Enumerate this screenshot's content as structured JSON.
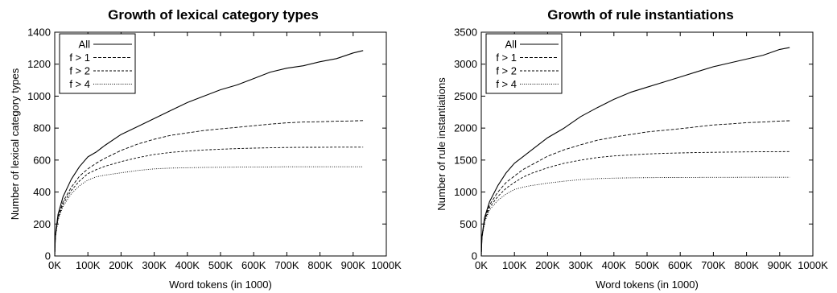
{
  "chart_data": [
    {
      "type": "line",
      "title": "Growth of lexical category types",
      "xlabel": "Word tokens (in 1000)",
      "ylabel": "Number of lexical category types",
      "xlim": [
        0,
        1000
      ],
      "ylim": [
        0,
        1400
      ],
      "x_ticks": [
        0,
        100,
        200,
        300,
        400,
        500,
        600,
        700,
        800,
        900,
        1000
      ],
      "x_tick_labels": [
        "0K",
        "100K",
        "200K",
        "300K",
        "400K",
        "500K",
        "600K",
        "700K",
        "800K",
        "900K",
        "1000K"
      ],
      "y_ticks": [
        0,
        200,
        400,
        600,
        800,
        1000,
        1200,
        1400
      ],
      "y_tick_labels": [
        "0",
        "200",
        "400",
        "600",
        "800",
        "1000",
        "1200",
        "1400"
      ],
      "legend_position": "top-left",
      "grid": false,
      "x": [
        0,
        2,
        10,
        25,
        50,
        75,
        100,
        125,
        150,
        200,
        250,
        300,
        350,
        400,
        450,
        500,
        550,
        600,
        650,
        700,
        750,
        800,
        850,
        900,
        930
      ],
      "series": [
        {
          "name": "All",
          "style": "solid",
          "values": [
            0,
            130,
            260,
            370,
            480,
            560,
            620,
            650,
            690,
            760,
            810,
            860,
            910,
            960,
            1000,
            1040,
            1070,
            1110,
            1150,
            1175,
            1190,
            1215,
            1235,
            1270,
            1285
          ]
        },
        {
          "name": "f > 1",
          "style": "dash",
          "values": [
            0,
            125,
            245,
            340,
            430,
            500,
            545,
            580,
            610,
            660,
            700,
            730,
            755,
            770,
            785,
            795,
            805,
            815,
            825,
            833,
            838,
            840,
            843,
            845,
            847
          ]
        },
        {
          "name": "f > 2",
          "style": "dash-fine",
          "values": [
            0,
            120,
            235,
            325,
            410,
            470,
            515,
            540,
            560,
            590,
            615,
            635,
            648,
            656,
            663,
            668,
            672,
            675,
            677,
            679,
            680,
            680,
            681,
            681,
            681
          ]
        },
        {
          "name": "f > 4",
          "style": "dot",
          "values": [
            0,
            115,
            225,
            310,
            390,
            440,
            475,
            495,
            505,
            520,
            535,
            545,
            550,
            552,
            554,
            555,
            556,
            557,
            557,
            558,
            558,
            558,
            558,
            558,
            558
          ]
        }
      ]
    },
    {
      "type": "line",
      "title": "Growth of rule instantiations",
      "xlabel": "Word tokens (in 1000)",
      "ylabel": "Number of rule instantiations",
      "xlim": [
        0,
        1000
      ],
      "ylim": [
        0,
        3500
      ],
      "x_ticks": [
        0,
        100,
        200,
        300,
        400,
        500,
        600,
        700,
        800,
        900,
        1000
      ],
      "x_tick_labels": [
        "0K",
        "100K",
        "200K",
        "300K",
        "400K",
        "500K",
        "600K",
        "700K",
        "800K",
        "900K",
        "1000K"
      ],
      "y_ticks": [
        0,
        500,
        1000,
        1500,
        2000,
        2500,
        3000,
        3500
      ],
      "y_tick_labels": [
        "0",
        "500",
        "1000",
        "1500",
        "2000",
        "2500",
        "3000",
        "3500"
      ],
      "legend_position": "top-left",
      "grid": false,
      "x": [
        0,
        2,
        10,
        25,
        50,
        75,
        100,
        125,
        150,
        200,
        250,
        300,
        350,
        400,
        450,
        500,
        550,
        600,
        650,
        700,
        750,
        800,
        850,
        900,
        930
      ],
      "series": [
        {
          "name": "All",
          "style": "solid",
          "values": [
            0,
            300,
            600,
            850,
            1100,
            1300,
            1450,
            1550,
            1650,
            1850,
            2000,
            2180,
            2320,
            2450,
            2560,
            2640,
            2720,
            2800,
            2880,
            2960,
            3020,
            3080,
            3140,
            3230,
            3260
          ]
        },
        {
          "name": "f > 1",
          "style": "dash",
          "values": [
            0,
            290,
            570,
            800,
            1000,
            1150,
            1250,
            1350,
            1420,
            1560,
            1660,
            1740,
            1810,
            1860,
            1900,
            1940,
            1965,
            1990,
            2020,
            2050,
            2065,
            2085,
            2095,
            2110,
            2115
          ]
        },
        {
          "name": "f > 2",
          "style": "dash-fine",
          "values": [
            0,
            280,
            550,
            760,
            930,
            1060,
            1150,
            1230,
            1290,
            1380,
            1450,
            1500,
            1540,
            1565,
            1580,
            1595,
            1605,
            1612,
            1618,
            1622,
            1625,
            1628,
            1630,
            1632,
            1633
          ]
        },
        {
          "name": "f > 4",
          "style": "dot",
          "values": [
            0,
            270,
            530,
            720,
            870,
            970,
            1040,
            1075,
            1100,
            1140,
            1170,
            1195,
            1210,
            1218,
            1222,
            1225,
            1227,
            1228,
            1229,
            1230,
            1230,
            1231,
            1231,
            1231,
            1231
          ]
        }
      ]
    }
  ]
}
